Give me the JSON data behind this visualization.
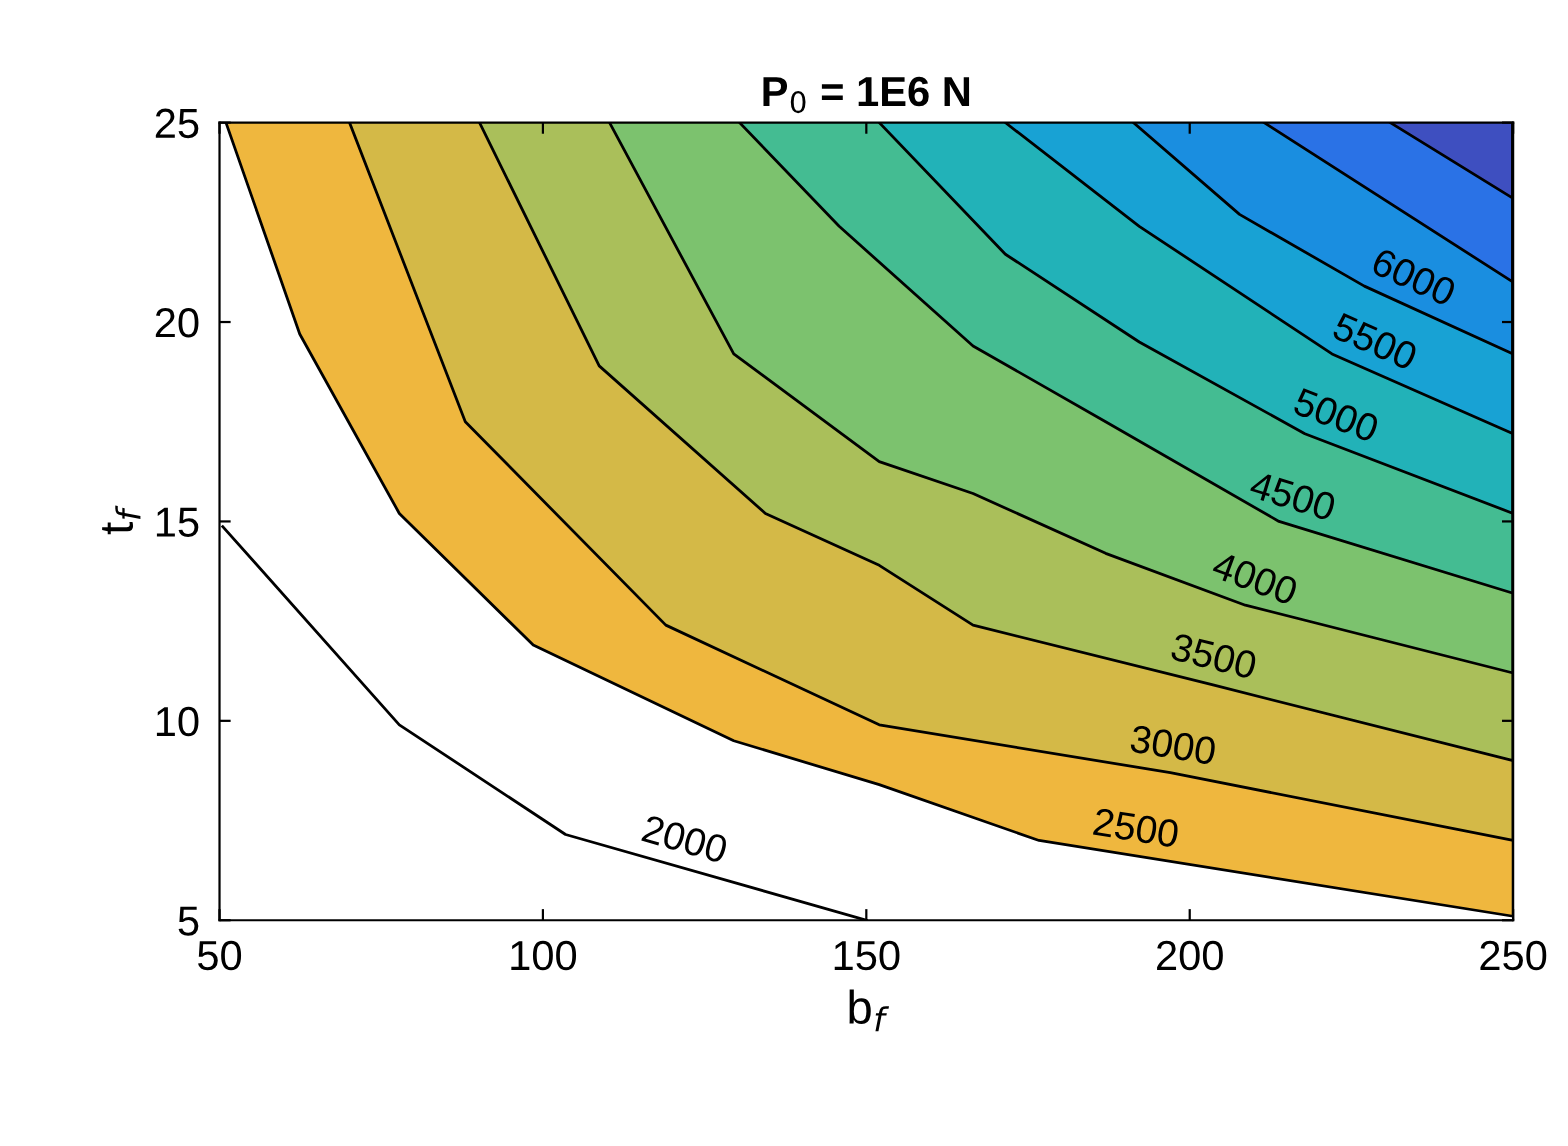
{
  "chart_data": {
    "type": "line",
    "title": "P$_{0}$ = 1E6 N",
    "xlabel": "b$_{f}$",
    "ylabel": "t$_{f}$",
    "xlim": [
      50,
      250
    ],
    "ylim": [
      5,
      25
    ],
    "xticks": [
      50,
      100,
      150,
      200,
      250
    ],
    "yticks": [
      5,
      10,
      15,
      20,
      25
    ],
    "grid": false,
    "series": [
      {
        "name": "2000",
        "color": "#000000",
        "x": [
          50.5,
          77.8,
          103.5,
          150
        ],
        "values": [
          14.87,
          9.9,
          7.15,
          5.0
        ]
      },
      {
        "type": "area",
        "name": "2500",
        "color": "#efb73e",
        "x": [
          51,
          62.4,
          77.8,
          98.5,
          129.5,
          152,
          176.7,
          250,
          250
        ],
        "values": [
          25,
          19.7,
          15.2,
          11.9,
          9.5,
          8.4,
          7.0,
          5.1,
          25
        ]
      },
      {
        "type": "area",
        "name": "3000",
        "color": "#d4b947",
        "x": [
          70.1,
          88,
          119,
          152,
          197,
          250,
          250
        ],
        "values": [
          25,
          17.5,
          12.4,
          9.9,
          8.7,
          7.0,
          25
        ]
      },
      {
        "type": "area",
        "name": "3500",
        "color": "#aabf5a",
        "x": [
          90.2,
          108.7,
          134.4,
          152,
          166.5,
          203.6,
          250,
          250
        ],
        "values": [
          25,
          18.9,
          15.2,
          13.9,
          12.4,
          10.9,
          9.0,
          25
        ]
      },
      {
        "type": "area",
        "name": "4000",
        "color": "#7cc26e",
        "x": [
          110.3,
          129.5,
          152,
          166.5,
          187,
          208.6,
          250,
          250
        ],
        "values": [
          25,
          19.2,
          16.5,
          15.7,
          14.2,
          12.9,
          11.2,
          25
        ]
      },
      {
        "type": "area",
        "name": "4500",
        "color": "#44bc92",
        "x": [
          130.4,
          145.8,
          166.5,
          187,
          213.8,
          250,
          250
        ],
        "values": [
          25,
          22.4,
          19.4,
          17.5,
          15.0,
          13.2,
          25
        ]
      },
      {
        "type": "area",
        "name": "5000",
        "color": "#22b2b8",
        "x": [
          152,
          171.5,
          192.2,
          217.8,
          250,
          250
        ],
        "values": [
          25,
          21.7,
          19.5,
          17.2,
          15.2,
          25
        ]
      },
      {
        "type": "area",
        "name": "5500",
        "color": "#18a2d4",
        "x": [
          171.5,
          192.2,
          222,
          250,
          250
        ],
        "values": [
          25,
          22.4,
          19.2,
          17.2,
          25
        ]
      },
      {
        "type": "area",
        "name": "6000",
        "color": "#1a8ee0",
        "x": [
          191.3,
          207.7,
          227,
          250,
          250
        ],
        "values": [
          25,
          22.7,
          20.9,
          19.2,
          25
        ]
      },
      {
        "type": "area",
        "color": "#2a72e6",
        "x": [
          211.5,
          250,
          250
        ],
        "values": [
          25,
          21.0,
          25
        ]
      },
      {
        "type": "area",
        "color": "#3e4fc0",
        "x": [
          231,
          250,
          250
        ],
        "values": [
          25,
          23.1,
          25
        ]
      }
    ]
  }
}
